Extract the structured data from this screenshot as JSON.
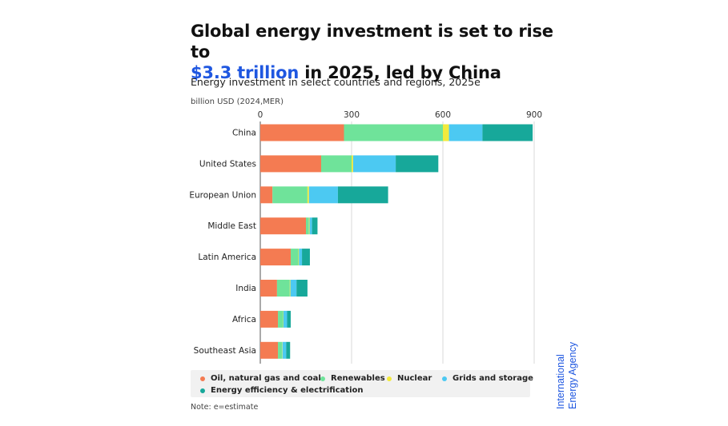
{
  "title": {
    "line1": "Global energy investment is set to rise to",
    "highlight": "$3.3 trillion",
    "line2_rest": " in 2025, led by China"
  },
  "subtitle": "Energy investment in select countries and regions, 2025e",
  "note": "Note: e=estimate",
  "brand": {
    "line1": "International",
    "line2": "Energy Agency",
    "color": "#1f57e0"
  },
  "chart_data": {
    "type": "bar",
    "orientation": "horizontal",
    "stacked": true,
    "title": "Energy investment in select countries and regions, 2025e",
    "xlabel": "billion USD (2024,MER)",
    "xlim": [
      0,
      900
    ],
    "xticks": [
      0,
      300,
      600,
      900
    ],
    "grid": true,
    "legend_position": "bottom",
    "categories": [
      "China",
      "United States",
      "European Union",
      "Middle East",
      "Latin America",
      "India",
      "Africa",
      "Southeast Asia"
    ],
    "series": [
      {
        "name": "Oil, natural gas and coal",
        "color": "#f47b52",
        "values": [
          275,
          200,
          40,
          150,
          100,
          55,
          58,
          58
        ]
      },
      {
        "name": "Renewables",
        "color": "#6fe39a",
        "values": [
          325,
          100,
          115,
          10,
          25,
          42,
          17,
          14
        ]
      },
      {
        "name": "Nuclear",
        "color": "#f2ea3c",
        "values": [
          20,
          5,
          5,
          2,
          2,
          2,
          1,
          1
        ]
      },
      {
        "name": "Grids and storage",
        "color": "#4cc9f2",
        "values": [
          110,
          140,
          95,
          8,
          10,
          20,
          12,
          12
        ]
      },
      {
        "name": "Energy efficiency & electrification",
        "color": "#17a89a",
        "values": [
          165,
          140,
          165,
          18,
          26,
          36,
          12,
          13
        ]
      }
    ]
  }
}
